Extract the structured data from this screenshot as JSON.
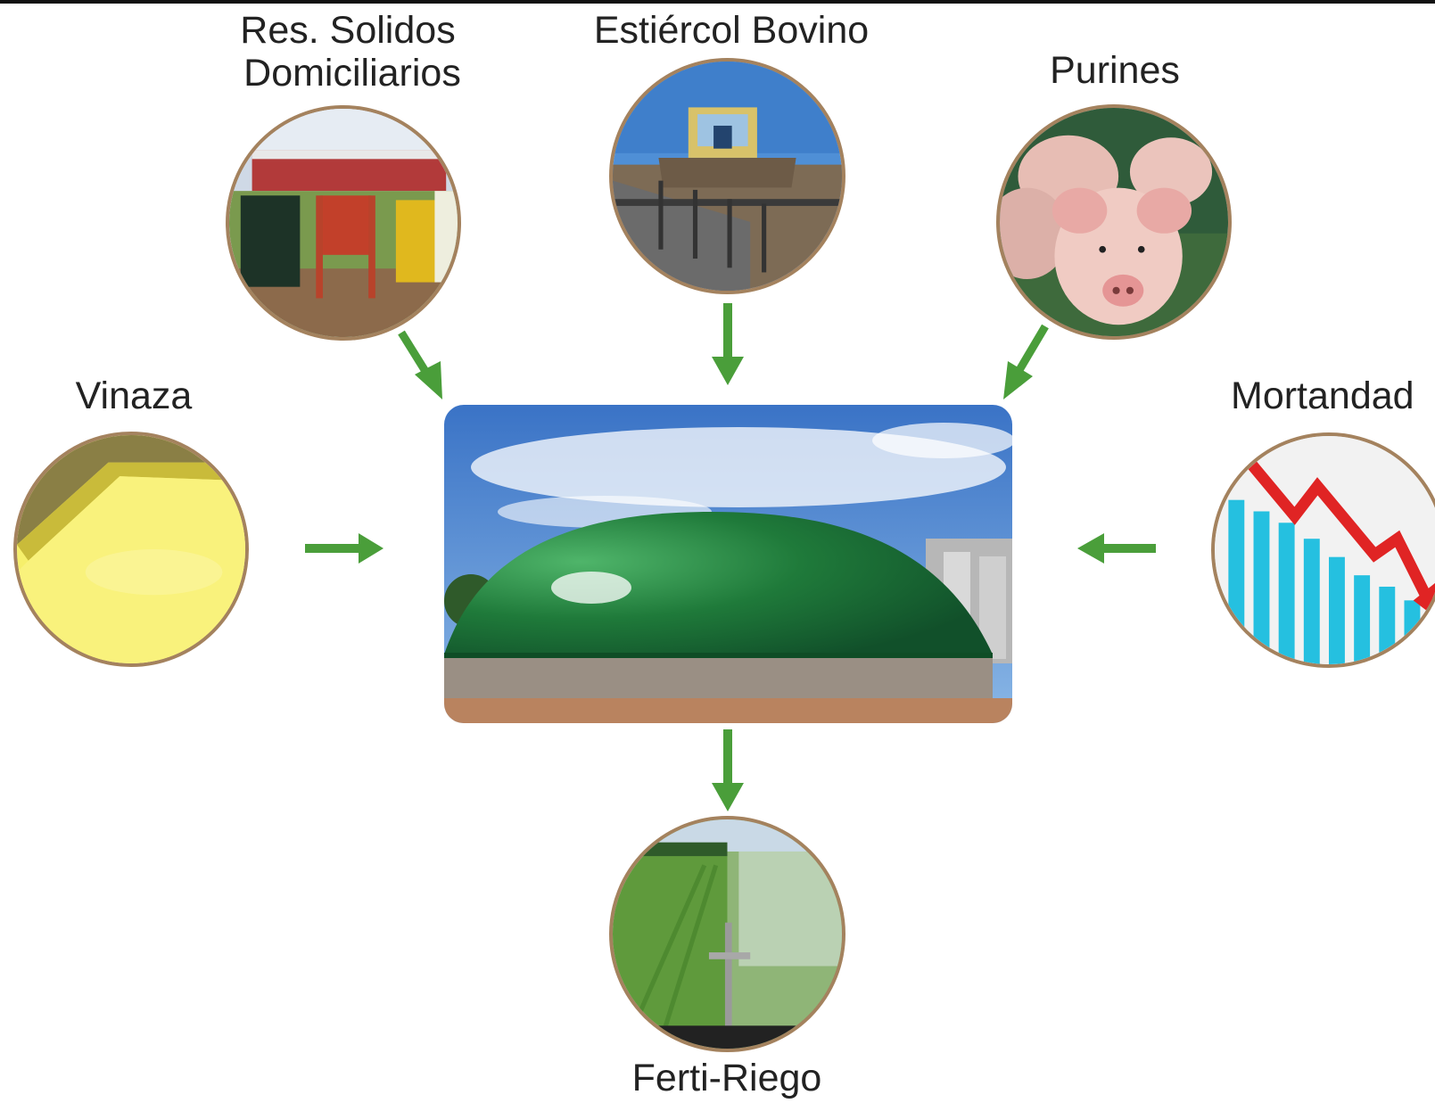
{
  "nodes": {
    "solidos": {
      "label_line1": "Res. Solidos",
      "label_line2": "Domiciliarios"
    },
    "bovino": {
      "label": "Estiércol Bovino"
    },
    "purines": {
      "label": "Purines"
    },
    "vinaza": {
      "label": "Vinaza"
    },
    "mortandad": {
      "label": "Mortandad"
    },
    "ferti": {
      "label": "Ferti-Riego"
    }
  },
  "colors": {
    "arrow": "#4a9e3a",
    "circle_border": "#a4825e",
    "dome": "#1f7a3a"
  }
}
